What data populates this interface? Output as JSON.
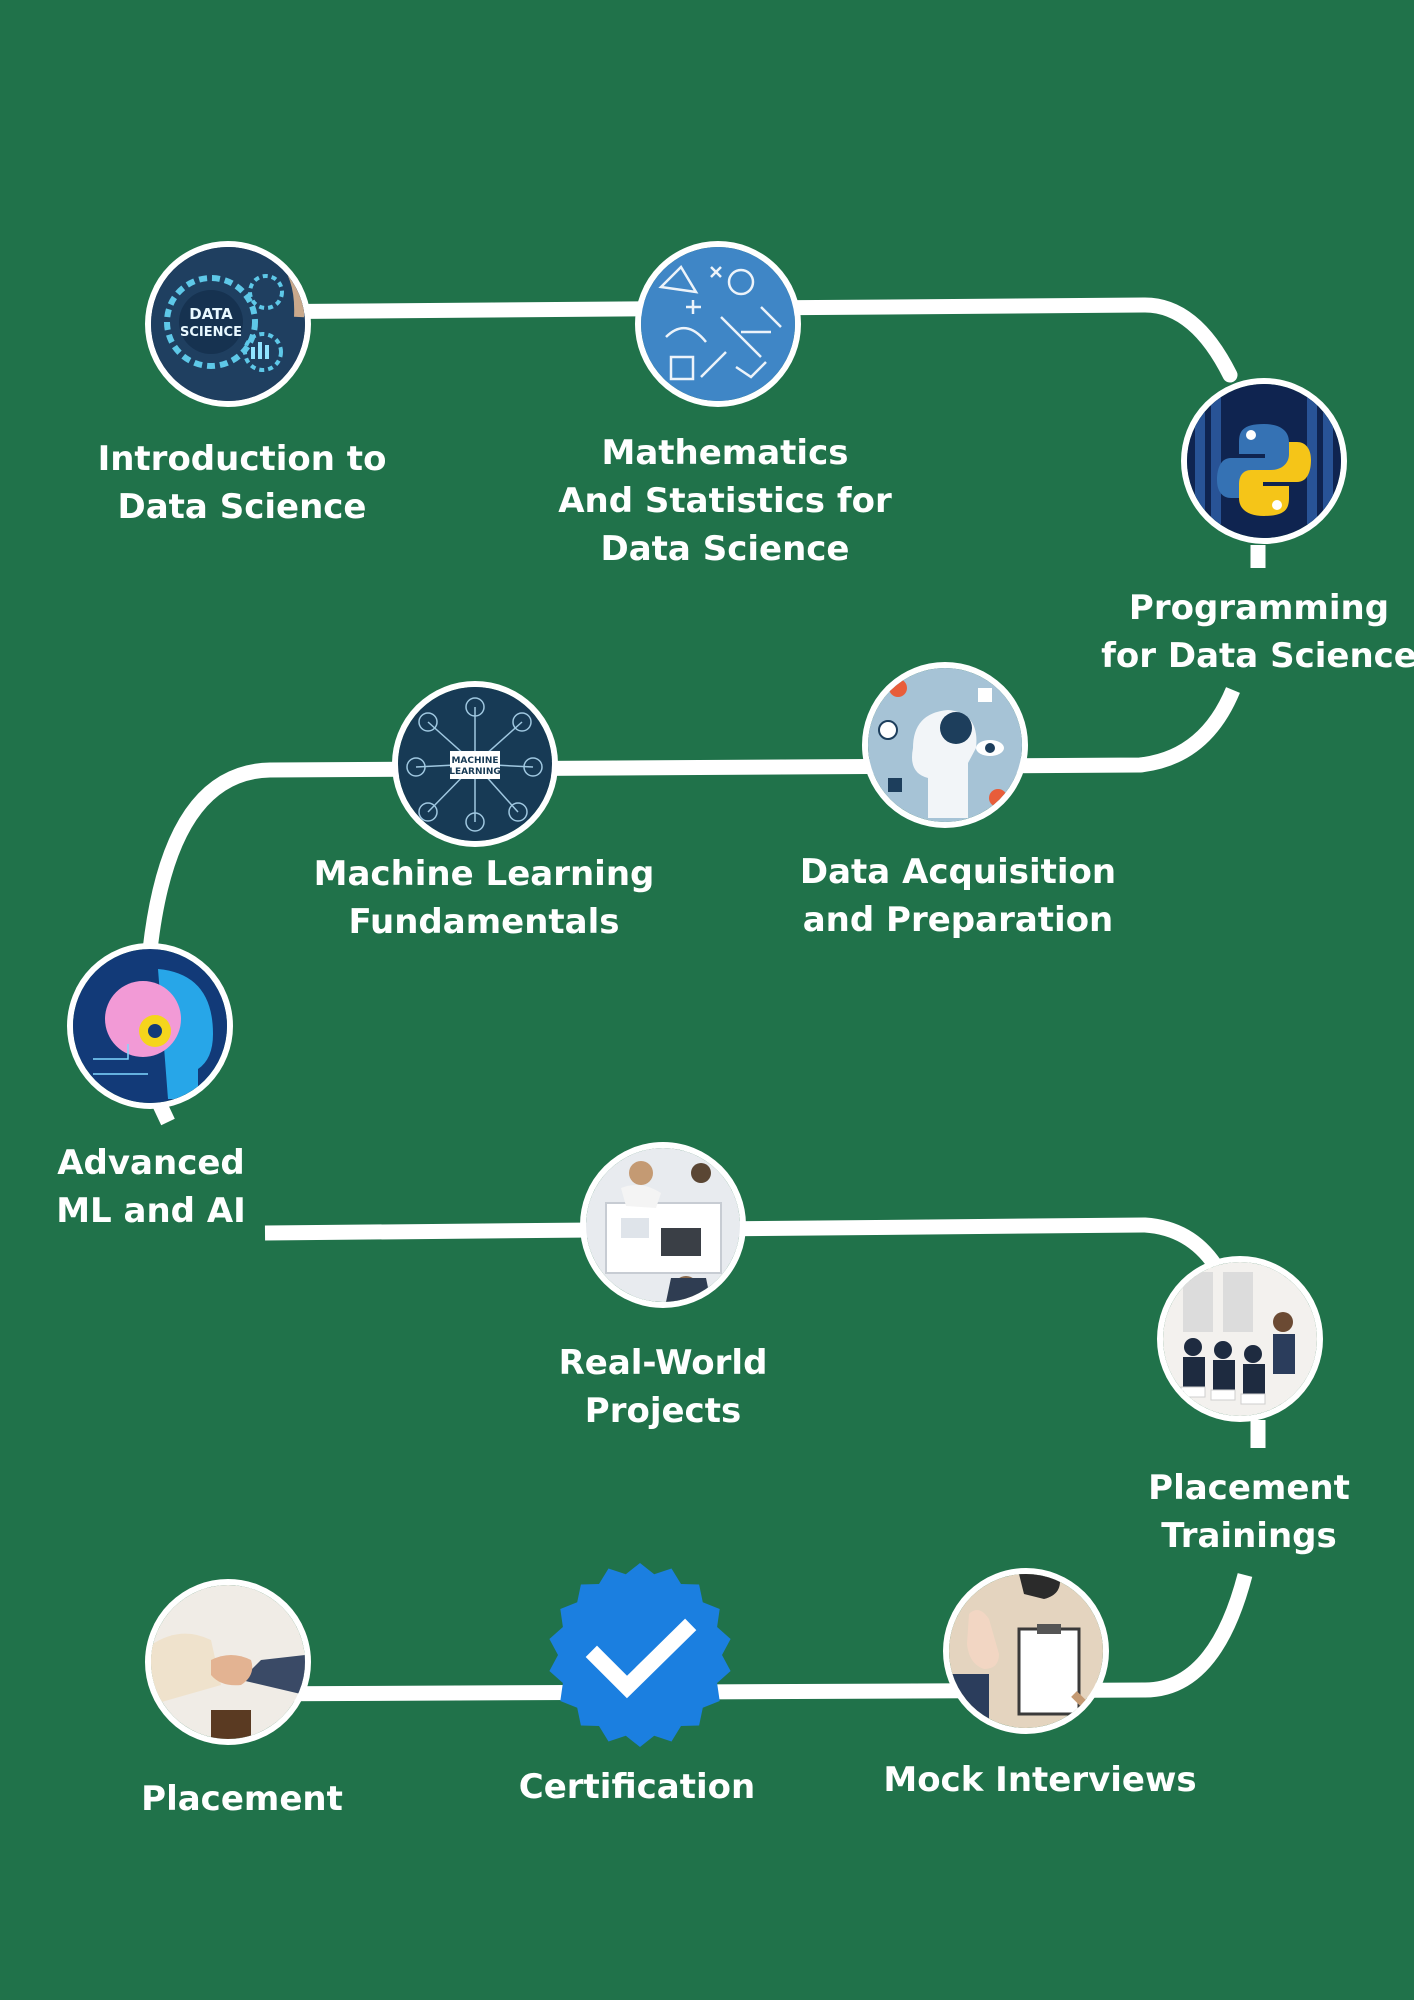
{
  "background_color": "#20724a",
  "path_color": "#ffffff",
  "steps": [
    {
      "line1": "Introduction to",
      "line2": "Data Science",
      "image": "data-science-gears-icon"
    },
    {
      "line1": "Mathematics",
      "line2": "And Statistics for",
      "line3": "Data Science",
      "image": "math-formulas-icon"
    },
    {
      "line1": "Programming",
      "line2": "for Data Science",
      "image": "python-logo-icon"
    },
    {
      "line1": "Data Acquisition",
      "line2": "and Preparation",
      "image": "data-head-icon"
    },
    {
      "line1": "Machine Learning",
      "line2": "Fundamentals",
      "image": "machine-learning-network-icon",
      "image_text1": "MACHINE",
      "image_text2": "LEARNING"
    },
    {
      "line1": "Advanced",
      "line2": "ML and AI",
      "image": "ai-brain-head-icon"
    },
    {
      "line1": "Real-World",
      "line2": "Projects",
      "image": "team-meeting-icon"
    },
    {
      "line1": "Placement",
      "line2": "Trainings",
      "image": "training-session-icon"
    },
    {
      "line1": "Mock Interviews",
      "image": "interview-clipboard-icon"
    },
    {
      "line1": "Certification",
      "image": "verified-badge-icon",
      "badge_color": "#1b7fe0"
    },
    {
      "line1": "Placement",
      "image": "handshake-icon"
    }
  ],
  "image_labels": {
    "intro_line1": "DATA",
    "intro_line2": "SCIENCE"
  }
}
